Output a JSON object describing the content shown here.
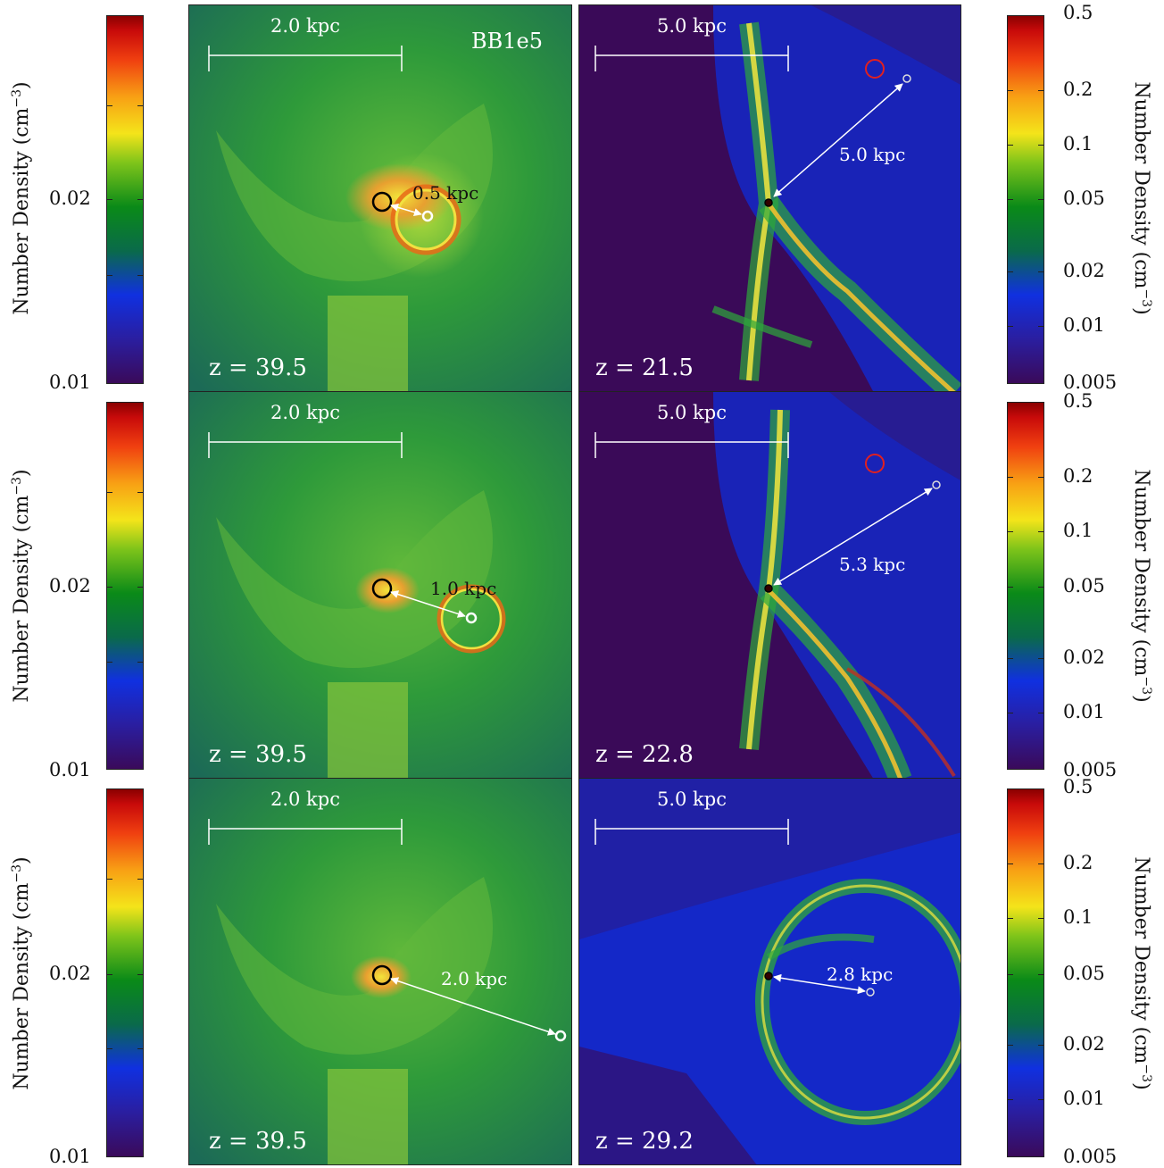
{
  "figure": {
    "sim_label": "BB1e5",
    "left_colorbar": {
      "label": "Number Density (cm",
      "label_exp": "−3",
      "label_close": ")",
      "ticks": [
        "0.02",
        "0.01"
      ]
    },
    "right_colorbar": {
      "label": "Number Density (cm",
      "label_exp": "−3",
      "label_close": ")",
      "ticks": [
        "0.5",
        "0.2",
        "0.1",
        "0.05",
        "0.02",
        "0.01",
        "0.005"
      ]
    },
    "rows": [
      {
        "left": {
          "scale": "2.0 kpc",
          "redshift": "z = 39.5",
          "separation": "0.5 kpc"
        },
        "right": {
          "scale": "5.0 kpc",
          "redshift": "z = 21.5",
          "separation": "5.0 kpc"
        }
      },
      {
        "left": {
          "scale": "2.0 kpc",
          "redshift": "z = 39.5",
          "separation": "1.0 kpc"
        },
        "right": {
          "scale": "5.0 kpc",
          "redshift": "z = 22.8",
          "separation": "5.3 kpc"
        }
      },
      {
        "left": {
          "scale": "2.0 kpc",
          "redshift": "z = 39.5",
          "separation": "2.0 kpc"
        },
        "right": {
          "scale": "5.0 kpc",
          "redshift": "z = 29.2",
          "separation": "2.8 kpc"
        }
      }
    ]
  }
}
